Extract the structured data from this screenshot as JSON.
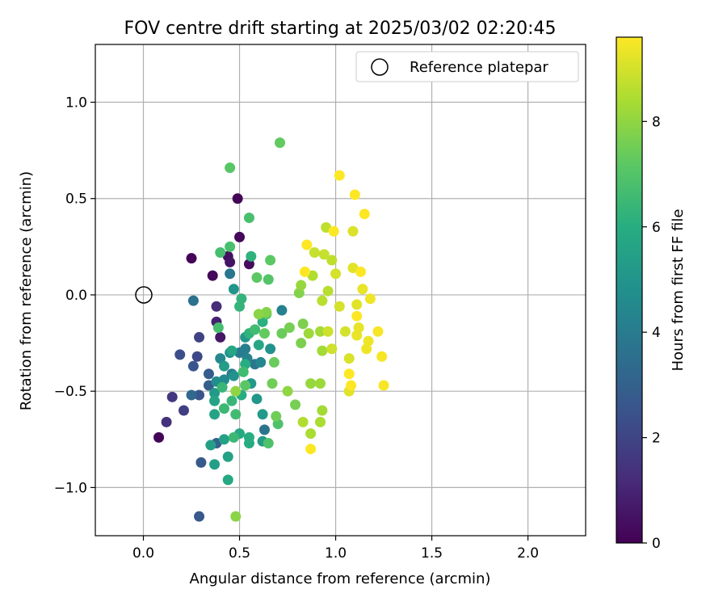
{
  "chart_data": {
    "type": "scatter",
    "title": "FOV centre drift starting at 2025/03/02 02:20:45",
    "xlabel": "Angular distance from reference (arcmin)",
    "ylabel": "Rotation from reference (arcmin)",
    "xlim": [
      -0.25,
      2.3
    ],
    "ylim": [
      -1.25,
      1.3
    ],
    "xticks": [
      0.0,
      0.5,
      1.0,
      1.5,
      2.0
    ],
    "xtick_labels": [
      "0.0",
      "0.5",
      "1.0",
      "1.5",
      "2.0"
    ],
    "yticks": [
      -1.0,
      -0.5,
      0.0,
      0.5,
      1.0
    ],
    "ytick_labels": [
      "−1.0",
      "−0.5",
      "0.0",
      "0.5",
      "1.0"
    ],
    "grid": true,
    "legend": {
      "position": "upper-right",
      "entries": [
        "Reference platepar"
      ]
    },
    "reference_point": {
      "x": 0.0,
      "y": 0.0,
      "label": "Reference platepar"
    },
    "colorbar": {
      "label": "Hours from first FF file",
      "colormap": "viridis",
      "range": [
        0,
        9.6
      ],
      "ticks": [
        0,
        2,
        4,
        6,
        8
      ],
      "tick_labels": [
        "0",
        "2",
        "4",
        "6",
        "8"
      ]
    },
    "series_columns": [
      "x",
      "y",
      "hours"
    ],
    "points": [
      [
        0.08,
        -0.74,
        0.1
      ],
      [
        0.25,
        0.19,
        0.1
      ],
      [
        0.36,
        0.1,
        0.2
      ],
      [
        0.49,
        0.5,
        0.1
      ],
      [
        0.5,
        0.3,
        0.2
      ],
      [
        0.44,
        0.2,
        0.4
      ],
      [
        0.45,
        0.17,
        0.5
      ],
      [
        0.55,
        0.16,
        0.3
      ],
      [
        0.4,
        -0.22,
        0.6
      ],
      [
        0.38,
        -0.14,
        0.9
      ],
      [
        0.38,
        -0.06,
        1.2
      ],
      [
        0.12,
        -0.66,
        1.4
      ],
      [
        0.15,
        -0.53,
        1.6
      ],
      [
        0.21,
        -0.6,
        1.8
      ],
      [
        0.29,
        -0.22,
        1.9
      ],
      [
        0.28,
        -0.32,
        2.1
      ],
      [
        0.19,
        -0.31,
        2.3
      ],
      [
        0.29,
        -0.52,
        2.5
      ],
      [
        0.26,
        -0.37,
        2.6
      ],
      [
        0.34,
        -0.41,
        2.8
      ],
      [
        0.34,
        -0.47,
        2.9
      ],
      [
        0.3,
        -0.87,
        2.7
      ],
      [
        0.29,
        -1.15,
        2.7
      ],
      [
        0.38,
        -0.77,
        3.0
      ],
      [
        0.25,
        -0.52,
        3.3
      ],
      [
        0.26,
        -0.03,
        3.6
      ],
      [
        0.45,
        0.11,
        3.8
      ],
      [
        0.58,
        -0.36,
        3.8
      ],
      [
        0.63,
        -0.7,
        3.7
      ],
      [
        0.46,
        -0.41,
        3.9
      ],
      [
        0.5,
        -0.3,
        4.0
      ],
      [
        0.53,
        -0.28,
        4.1
      ],
      [
        0.72,
        -0.08,
        4.2
      ],
      [
        0.54,
        -0.33,
        4.3
      ],
      [
        0.61,
        -0.35,
        4.4
      ],
      [
        0.4,
        -0.33,
        4.5
      ],
      [
        0.42,
        -0.44,
        4.6
      ],
      [
        0.38,
        -0.45,
        4.7
      ],
      [
        0.45,
        -0.3,
        4.8
      ],
      [
        0.47,
        -0.42,
        4.9
      ],
      [
        0.66,
        -0.28,
        4.9
      ],
      [
        0.47,
        0.03,
        5.0
      ],
      [
        0.53,
        -0.22,
        5.1
      ],
      [
        0.56,
        -0.46,
        5.1
      ],
      [
        0.59,
        -0.54,
        5.1
      ],
      [
        0.62,
        -0.62,
        5.2
      ],
      [
        0.37,
        -0.51,
        5.2
      ],
      [
        0.42,
        -0.37,
        5.3
      ],
      [
        0.62,
        -0.76,
        5.3
      ],
      [
        0.37,
        -0.88,
        5.4
      ],
      [
        0.35,
        -0.78,
        5.4
      ],
      [
        0.44,
        -0.84,
        5.5
      ],
      [
        0.42,
        -0.75,
        5.5
      ],
      [
        0.37,
        -0.55,
        5.6
      ],
      [
        0.37,
        -0.62,
        5.6
      ],
      [
        0.46,
        -0.29,
        5.7
      ],
      [
        0.6,
        -0.26,
        5.7
      ],
      [
        0.44,
        -0.96,
        5.8
      ],
      [
        0.5,
        -0.72,
        5.8
      ],
      [
        0.55,
        -0.77,
        5.9
      ],
      [
        0.51,
        -0.52,
        5.9
      ],
      [
        0.55,
        -0.74,
        6.0
      ],
      [
        0.53,
        -0.36,
        6.0
      ],
      [
        0.62,
        -0.14,
        6.1
      ],
      [
        0.56,
        0.2,
        6.2
      ],
      [
        0.55,
        -0.2,
        6.2
      ],
      [
        0.5,
        -0.06,
        6.3
      ],
      [
        0.51,
        -0.02,
        6.3
      ],
      [
        0.46,
        -0.55,
        6.4
      ],
      [
        0.41,
        -0.48,
        6.4
      ],
      [
        0.47,
        -0.74,
        6.5
      ],
      [
        0.42,
        -0.59,
        6.5
      ],
      [
        0.52,
        -0.4,
        6.6
      ],
      [
        0.48,
        -0.62,
        6.6
      ],
      [
        0.58,
        -0.18,
        6.6
      ],
      [
        0.39,
        -0.17,
        6.7
      ],
      [
        0.4,
        0.22,
        6.7
      ],
      [
        0.45,
        0.25,
        6.8
      ],
      [
        0.55,
        0.4,
        6.8
      ],
      [
        0.65,
        -0.77,
        6.9
      ],
      [
        0.7,
        -0.67,
        6.9
      ],
      [
        0.65,
        0.08,
        7.0
      ],
      [
        0.64,
        -0.1,
        7.0
      ],
      [
        0.45,
        0.66,
        7.1
      ],
      [
        0.53,
        -0.47,
        7.1
      ],
      [
        0.59,
        0.09,
        7.2
      ],
      [
        0.66,
        0.18,
        7.2
      ],
      [
        0.71,
        0.79,
        7.3
      ],
      [
        0.63,
        -0.2,
        7.3
      ],
      [
        0.68,
        -0.35,
        7.4
      ],
      [
        0.72,
        -0.2,
        7.4
      ],
      [
        0.67,
        -0.46,
        7.5
      ],
      [
        0.69,
        -0.63,
        7.5
      ],
      [
        0.79,
        -0.57,
        7.6
      ],
      [
        0.76,
        -0.17,
        7.6
      ],
      [
        0.82,
        -0.25,
        7.7
      ],
      [
        0.83,
        -0.15,
        7.7
      ],
      [
        0.81,
        0.01,
        7.8
      ],
      [
        0.64,
        -0.09,
        7.8
      ],
      [
        0.6,
        -0.1,
        7.9
      ],
      [
        0.48,
        -1.15,
        7.9
      ],
      [
        0.48,
        -0.5,
        8.0
      ],
      [
        0.75,
        -0.5,
        8.0
      ],
      [
        0.82,
        0.05,
        8.1
      ],
      [
        0.87,
        -0.46,
        8.1
      ],
      [
        0.86,
        -0.2,
        8.2
      ],
      [
        0.92,
        -0.46,
        8.2
      ],
      [
        0.92,
        -0.19,
        8.3
      ],
      [
        0.93,
        -0.29,
        8.3
      ],
      [
        0.93,
        -0.6,
        8.3
      ],
      [
        0.92,
        -0.66,
        8.4
      ],
      [
        0.87,
        -0.72,
        8.4
      ],
      [
        0.83,
        -0.66,
        8.5
      ],
      [
        0.88,
        0.1,
        8.5
      ],
      [
        0.93,
        -0.03,
        8.6
      ],
      [
        0.96,
        0.02,
        8.6
      ],
      [
        0.98,
        0.18,
        8.7
      ],
      [
        0.95,
        0.35,
        8.7
      ],
      [
        0.94,
        0.21,
        8.8
      ],
      [
        0.89,
        0.22,
        8.8
      ],
      [
        0.96,
        -0.19,
        8.9
      ],
      [
        0.98,
        -0.28,
        8.9
      ],
      [
        1.0,
        0.11,
        9.0
      ],
      [
        1.02,
        -0.06,
        9.0
      ],
      [
        1.05,
        -0.19,
        9.0
      ],
      [
        1.09,
        0.33,
        9.1
      ],
      [
        1.07,
        -0.33,
        9.1
      ],
      [
        1.07,
        -0.5,
        9.2
      ],
      [
        1.09,
        0.14,
        9.2
      ],
      [
        1.11,
        -0.05,
        9.2
      ],
      [
        1.11,
        -0.21,
        9.3
      ],
      [
        1.12,
        -0.17,
        9.3
      ],
      [
        1.14,
        0.03,
        9.3
      ],
      [
        1.16,
        -0.28,
        9.4
      ],
      [
        1.18,
        -0.02,
        9.4
      ],
      [
        1.17,
        -0.24,
        9.4
      ],
      [
        1.22,
        -0.19,
        9.5
      ],
      [
        1.24,
        -0.32,
        9.5
      ],
      [
        1.25,
        -0.47,
        9.5
      ],
      [
        1.13,
        0.12,
        9.6
      ],
      [
        1.15,
        0.42,
        9.6
      ],
      [
        1.1,
        0.52,
        9.6
      ],
      [
        1.02,
        0.62,
        9.6
      ],
      [
        0.85,
        0.26,
        9.6
      ],
      [
        0.99,
        0.33,
        9.6
      ],
      [
        1.08,
        -0.47,
        9.6
      ],
      [
        0.87,
        -0.8,
        9.6
      ],
      [
        0.84,
        0.12,
        9.6
      ],
      [
        1.11,
        -0.11,
        9.6
      ],
      [
        1.07,
        -0.41,
        9.6
      ]
    ]
  }
}
